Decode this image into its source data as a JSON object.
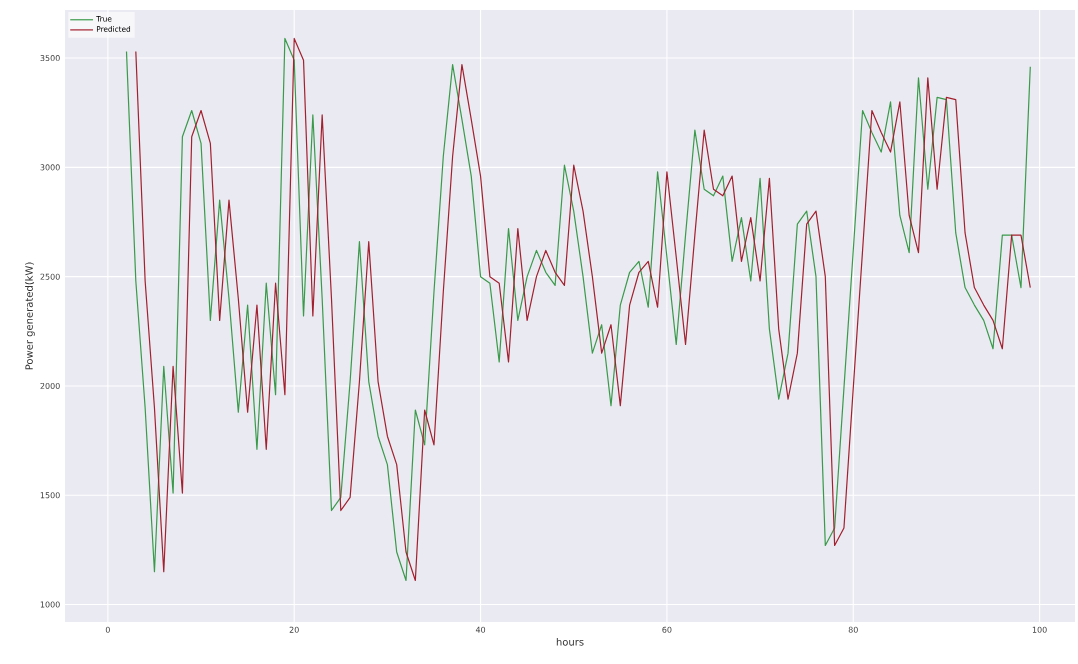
{
  "chart_data": {
    "type": "line",
    "xlabel": "hours",
    "ylabel": "Power generated(kW)",
    "xlim": [
      -4.6,
      103.8
    ],
    "ylim": [
      920,
      3720
    ],
    "xticks": [
      0,
      20,
      40,
      60,
      80,
      100
    ],
    "yticks": [
      1000,
      1500,
      2000,
      2500,
      3000,
      3500
    ],
    "grid": true,
    "legend": "top left",
    "line_style": "solid",
    "series": [
      {
        "name": "True",
        "color": "#3a9a4a",
        "x": [
          2,
          3,
          4,
          5,
          6,
          7,
          8,
          9,
          10,
          11,
          12,
          13,
          14,
          15,
          16,
          17,
          18,
          19,
          20,
          21,
          22,
          23,
          24,
          25,
          26,
          27,
          28,
          29,
          30,
          31,
          32,
          33,
          34,
          35,
          36,
          37,
          38,
          39,
          40,
          41,
          42,
          43,
          44,
          45,
          46,
          47,
          48,
          49,
          50,
          51,
          52,
          53,
          54,
          55,
          56,
          57,
          58,
          59,
          60,
          61,
          62,
          63,
          64,
          65,
          66,
          67,
          68,
          69,
          70,
          71,
          72,
          73,
          74,
          75,
          76,
          77,
          78,
          79,
          80,
          81,
          82,
          83,
          84,
          85,
          86,
          87,
          88,
          89,
          90,
          91,
          92,
          93,
          94,
          95,
          96,
          97,
          98,
          99
        ],
        "values": [
          3530,
          2480,
          1900,
          1150,
          2090,
          1510,
          3140,
          3260,
          3110,
          2300,
          2850,
          2400,
          1880,
          2370,
          1710,
          2470,
          1960,
          3590,
          3490,
          2320,
          3240,
          2400,
          1430,
          1490,
          2020,
          2660,
          2020,
          1770,
          1640,
          1240,
          1110,
          1890,
          1730,
          2430,
          3050,
          3470,
          3220,
          2960,
          2500,
          2470,
          2110,
          2720,
          2300,
          2500,
          2620,
          2520,
          2460,
          3010,
          2800,
          2500,
          2150,
          2280,
          1910,
          2370,
          2520,
          2570,
          2360,
          2980,
          2590,
          2190,
          2690,
          3170,
          2900,
          2870,
          2960,
          2570,
          2770,
          2480,
          2950,
          2260,
          1940,
          2150,
          2740,
          2800,
          2500,
          1270,
          1350,
          1990,
          2620,
          3260,
          3160,
          3070,
          3300,
          2780,
          2610,
          3410,
          2900,
          3320,
          3310,
          2700,
          2450,
          2370,
          2300,
          2170,
          2690,
          2690,
          2450,
          3460
        ]
      },
      {
        "name": "Predicted",
        "color": "#a3202e",
        "x": [
          3,
          4,
          5,
          6,
          7,
          8,
          9,
          10,
          11,
          12,
          13,
          14,
          15,
          16,
          17,
          18,
          19,
          20,
          21,
          22,
          23,
          24,
          25,
          26,
          27,
          28,
          29,
          30,
          31,
          32,
          33,
          34,
          35,
          36,
          37,
          38,
          39,
          40,
          41,
          42,
          43,
          44,
          45,
          46,
          47,
          48,
          49,
          50,
          51,
          52,
          53,
          54,
          55,
          56,
          57,
          58,
          59,
          60,
          61,
          62,
          63,
          64,
          65,
          66,
          67,
          68,
          69,
          70,
          71,
          72,
          73,
          74,
          75,
          76,
          77,
          78,
          79,
          80,
          81,
          82,
          83,
          84,
          85,
          86,
          87,
          88,
          89,
          90,
          91,
          92,
          93,
          94,
          95,
          96,
          97,
          98,
          99
        ],
        "values": [
          3530,
          2480,
          1900,
          1150,
          2090,
          1510,
          3140,
          3260,
          3110,
          2300,
          2850,
          2400,
          1880,
          2370,
          1710,
          2470,
          1960,
          3590,
          3490,
          2320,
          3240,
          2400,
          1430,
          1490,
          2020,
          2660,
          2020,
          1770,
          1640,
          1240,
          1110,
          1890,
          1730,
          2430,
          3050,
          3470,
          3220,
          2960,
          2500,
          2470,
          2110,
          2720,
          2300,
          2500,
          2620,
          2520,
          2460,
          3010,
          2800,
          2500,
          2150,
          2280,
          1910,
          2370,
          2520,
          2570,
          2360,
          2980,
          2590,
          2190,
          2690,
          3170,
          2900,
          2870,
          2960,
          2570,
          2770,
          2480,
          2950,
          2260,
          1940,
          2150,
          2740,
          2800,
          2500,
          1270,
          1350,
          1990,
          2620,
          3260,
          3160,
          3070,
          3300,
          2780,
          2610,
          3410,
          2900,
          3320,
          3310,
          2700,
          2450,
          2370,
          2300,
          2170,
          2690,
          2690,
          2450
        ]
      }
    ]
  }
}
